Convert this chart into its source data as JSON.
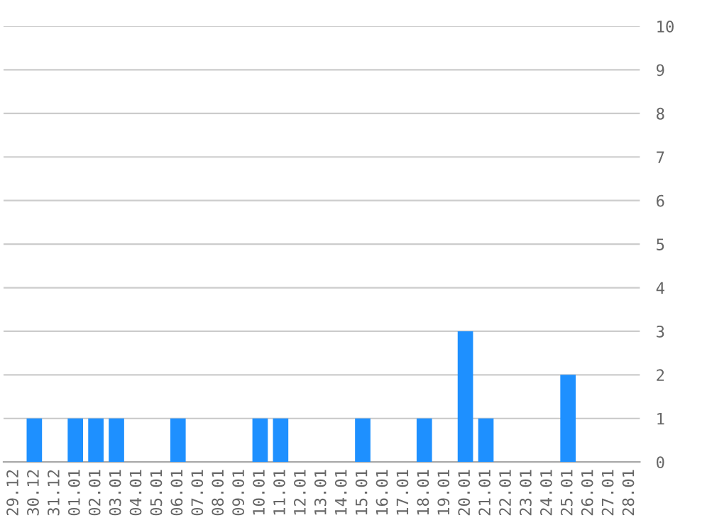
{
  "chart_data": {
    "type": "bar",
    "categories": [
      "29.12",
      "30.12",
      "31.12",
      "01.01",
      "02.01",
      "03.01",
      "04.01",
      "05.01",
      "06.01",
      "07.01",
      "08.01",
      "09.01",
      "10.01",
      "11.01",
      "12.01",
      "13.01",
      "14.01",
      "15.01",
      "16.01",
      "17.01",
      "18.01",
      "19.01",
      "20.01",
      "21.01",
      "22.01",
      "23.01",
      "24.01",
      "25.01",
      "26.01",
      "27.01",
      "28.01"
    ],
    "values": [
      0,
      1,
      0,
      1,
      1,
      1,
      0,
      0,
      1,
      0,
      0,
      0,
      1,
      1,
      0,
      0,
      0,
      1,
      0,
      0,
      1,
      0,
      3,
      1,
      0,
      0,
      0,
      2,
      0,
      0,
      0
    ],
    "color": "#1e90ff",
    "ylim": [
      0,
      10
    ],
    "yticks": [
      0,
      1,
      2,
      3,
      4,
      5,
      6,
      7,
      8,
      9,
      10
    ],
    "grid": "y"
  }
}
